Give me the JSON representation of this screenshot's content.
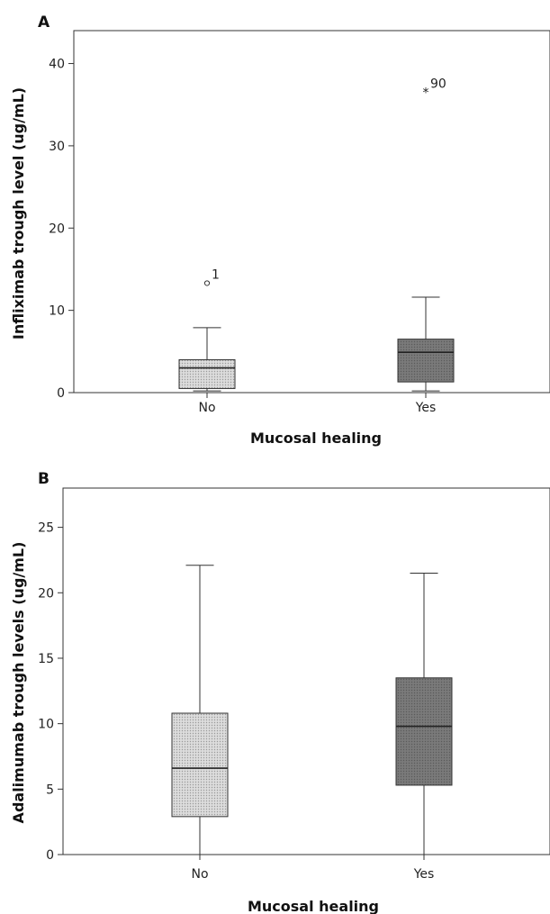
{
  "chart_data": [
    {
      "type": "box",
      "panel_label": "A",
      "xlabel": "Mucosal healing",
      "ylabel": "Infliximab trough level (ug/mL)",
      "ylim": [
        0,
        44
      ],
      "yticks": [
        0,
        10,
        20,
        30,
        40
      ],
      "categories": [
        "No",
        "Yes"
      ],
      "boxes": [
        {
          "category": "No",
          "min": 0.2,
          "q1": 0.5,
          "median": 3.0,
          "q3": 4.0,
          "max": 7.9,
          "color": "#d9d9d9"
        },
        {
          "category": "Yes",
          "min": 0.2,
          "q1": 1.3,
          "median": 4.9,
          "q3": 6.5,
          "max": 11.6,
          "color": "#7b7b7b"
        }
      ],
      "outliers": [
        {
          "category": "No",
          "value": 13.3,
          "marker": "circle",
          "label": "1"
        },
        {
          "category": "Yes",
          "value": 36.5,
          "marker": "star",
          "label": "90"
        }
      ]
    },
    {
      "type": "box",
      "panel_label": "B",
      "xlabel": "Mucosal healing",
      "ylabel": "Adalimumab trough levels (ug/mL)",
      "ylim": [
        0,
        28
      ],
      "yticks": [
        0,
        5,
        10,
        15,
        20,
        25
      ],
      "categories": [
        "No",
        "Yes"
      ],
      "boxes": [
        {
          "category": "No",
          "min": 0.0,
          "q1": 2.9,
          "median": 6.6,
          "q3": 10.8,
          "max": 22.1,
          "color": "#c4c4c4"
        },
        {
          "category": "Yes",
          "min": 0.0,
          "q1": 5.3,
          "median": 9.8,
          "q3": 13.5,
          "max": 21.5,
          "color": "#7b7b7b"
        }
      ],
      "outliers": []
    }
  ]
}
